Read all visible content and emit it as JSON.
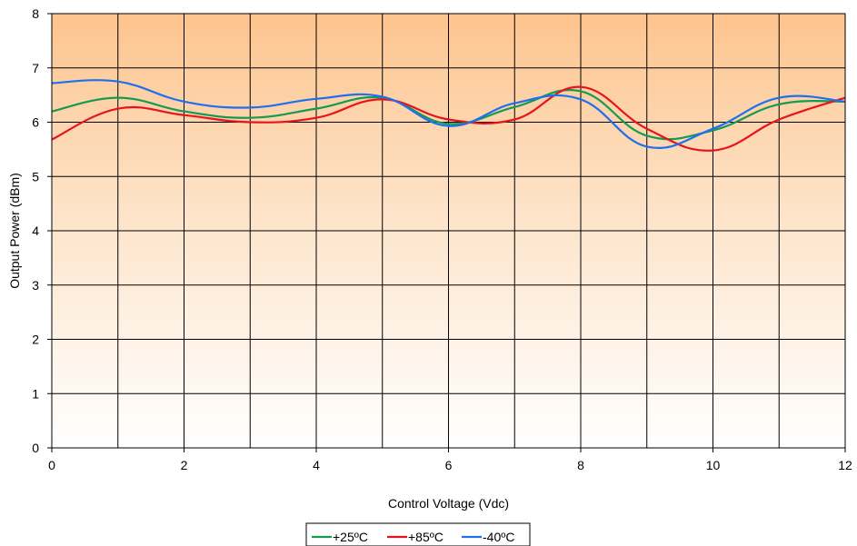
{
  "chart_data": {
    "type": "line",
    "xlabel": "Control Voltage (Vdc)",
    "ylabel": "Output Power (dBm)",
    "xlim": [
      0,
      12
    ],
    "ylim": [
      0,
      8
    ],
    "xticks": [
      0,
      2,
      4,
      6,
      8,
      10,
      12
    ],
    "yticks": [
      0,
      1,
      2,
      3,
      4,
      5,
      6,
      7,
      8
    ],
    "grid": true,
    "legend_position": "bottom",
    "background": "vertical gradient, orange top to white bottom",
    "series": [
      {
        "name": "+25ºC",
        "color": "#169a50",
        "x": [
          0,
          1,
          2,
          3,
          4,
          5,
          6,
          7,
          8,
          9,
          10,
          11,
          12
        ],
        "y": [
          6.2,
          6.45,
          6.2,
          6.08,
          6.25,
          6.45,
          5.97,
          6.28,
          6.57,
          5.75,
          5.85,
          6.33,
          6.38
        ]
      },
      {
        "name": "+85ºC",
        "color": "#e8141c",
        "x": [
          0,
          1,
          2,
          3,
          4,
          5,
          6,
          7,
          8,
          9,
          10,
          11,
          12
        ],
        "y": [
          5.68,
          6.25,
          6.13,
          6.0,
          6.08,
          6.42,
          6.05,
          6.05,
          6.65,
          5.88,
          5.48,
          6.05,
          6.45
        ]
      },
      {
        "name": "-40ºC",
        "color": "#1f6ff0",
        "x": [
          0,
          1,
          2,
          3,
          4,
          5,
          6,
          7,
          8,
          9,
          10,
          11,
          12
        ],
        "y": [
          6.72,
          6.75,
          6.38,
          6.27,
          6.43,
          6.47,
          5.93,
          6.35,
          6.42,
          5.55,
          5.88,
          6.45,
          6.38
        ]
      }
    ]
  }
}
